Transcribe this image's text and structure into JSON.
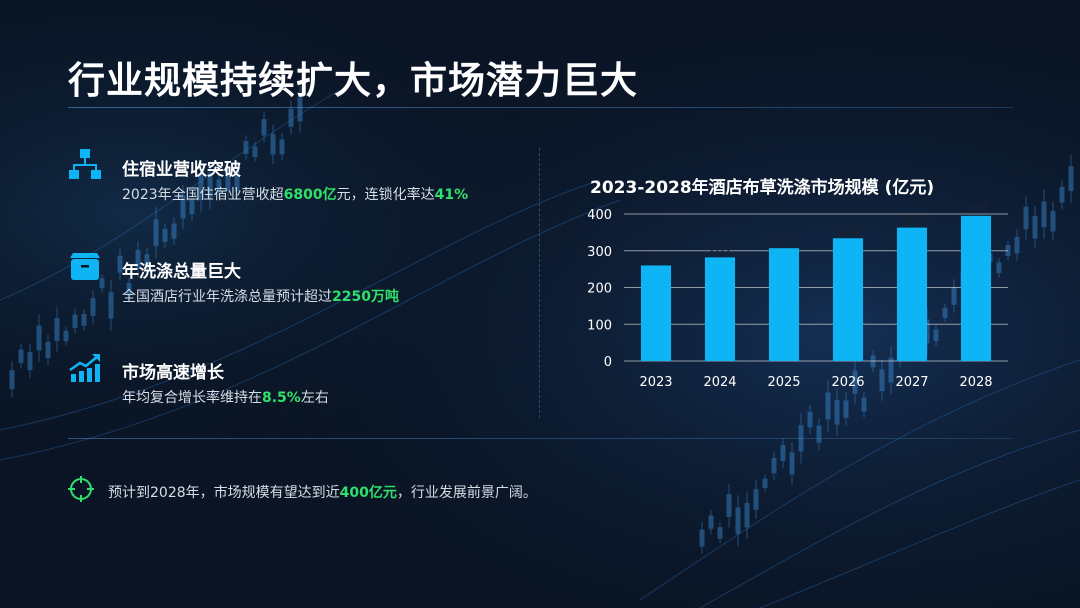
{
  "title": "行业规模持续扩大，市场潜力巨大",
  "items": [
    {
      "icon": "hierarchy-icon",
      "heading": "住宿业营收突破",
      "desc_pre": "2023年全国住宿业营收超",
      "highlight1": "6800亿",
      "desc_mid": "元，连锁化率达",
      "highlight2": "41%"
    },
    {
      "icon": "box-icon",
      "heading": "年洗涤总量巨大",
      "desc_pre": "全国酒店行业年洗涤总量预计超过",
      "highlight1": "2250万吨"
    },
    {
      "icon": "growth-chart-icon",
      "heading": "市场高速增长",
      "desc_pre": "年均复合增长率维持在",
      "highlight1": "8.5%",
      "desc_post": "左右"
    }
  ],
  "footer": {
    "icon": "crosshair-target-icon",
    "pre": "预计到2028年，市场规模有望达到近",
    "highlight": "400亿元",
    "post": "，行业发展前景广阔。"
  },
  "colors": {
    "background": "#0a1424",
    "accent_blue": "#0fb4f5",
    "highlight_green": "#2fe06a",
    "text": "#ffffff"
  },
  "chart_data": {
    "type": "bar",
    "title": "2023-2028年酒店布草洗涤市场规模 (亿元)",
    "categories": [
      "2023",
      "2024",
      "2025",
      "2026",
      "2027",
      "2028"
    ],
    "values": [
      260,
      282,
      307,
      334,
      363,
      395
    ],
    "ylim": [
      0,
      400
    ],
    "yticks": [
      0,
      100,
      200,
      300,
      400
    ],
    "grid": true,
    "bar_color": "#0fb4f5"
  }
}
